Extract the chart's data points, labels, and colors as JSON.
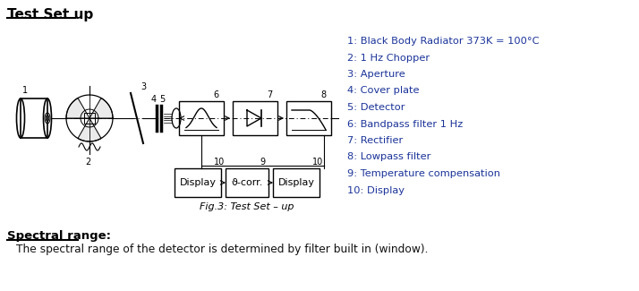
{
  "title": "Test Set up",
  "fig_caption": "Fig.3: Test Set – up",
  "legend_items": [
    "1: Black Body Radiator 373K = 100°C",
    "2: 1 Hz Chopper",
    "3: Aperture",
    "4: Cover plate",
    "5: Detector",
    "6: Bandpass filter 1 Hz",
    "7: Rectifier",
    "8: Lowpass filter",
    "9: Temperature compensation",
    "10: Display"
  ],
  "spectral_title": "Spectral range:",
  "spectral_text": "The spectral range of the detector is determined by filter built in (window).",
  "bg_color": "#ffffff",
  "legend_color": "#1a3399",
  "diagram_color": "#000000",
  "title_color": "#000000"
}
